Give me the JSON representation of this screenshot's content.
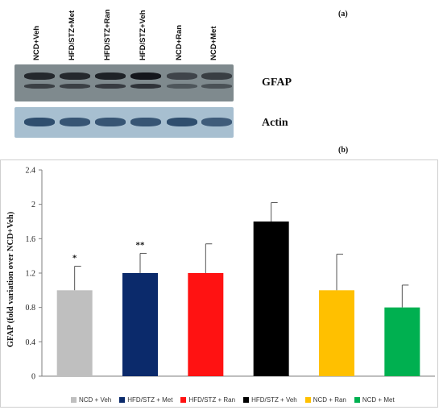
{
  "figure": {
    "panel_a_label": "(a)",
    "panel_b_label": "(b)"
  },
  "blot": {
    "lanes": [
      "NCD+Veh",
      "HFD/STZ+Met",
      "HFD/STZ+Ran",
      "HFD/STZ+Veh",
      "NCD+Ran",
      "NCD+Met"
    ],
    "rows": [
      {
        "label": "GFAP",
        "intensity": [
          0.85,
          0.85,
          0.9,
          1.0,
          0.6,
          0.65
        ]
      },
      {
        "label": "Actin",
        "intensity": [
          0.8,
          0.75,
          0.75,
          0.75,
          0.8,
          0.7
        ]
      }
    ]
  },
  "chart_data": {
    "type": "bar",
    "categories": [
      "NCD + Veh",
      "HFD/STZ + Met",
      "HFD/STZ + Ran",
      "HFD/STZ + Veh",
      "NCD + Ran",
      "NCD + Met"
    ],
    "values": [
      1.0,
      1.2,
      1.2,
      1.8,
      1.0,
      0.8
    ],
    "errors": [
      0.28,
      0.23,
      0.34,
      0.22,
      0.42,
      0.26
    ],
    "annotations": [
      "*",
      "**",
      "",
      "",
      "",
      ""
    ],
    "colors": [
      "#bfbfbf",
      "#0b2a6b",
      "#ff1212",
      "#000000",
      "#ffc000",
      "#00b050"
    ],
    "ylabel": "GFAP (fold variation over NCD+Veh)",
    "xlabel": "",
    "ylim": [
      0,
      2.4
    ],
    "yticks": [
      "0",
      "0.4",
      "0.8",
      "1.2",
      "1.6",
      "2",
      "2.4"
    ],
    "legend_position": "bottom",
    "grid": false
  }
}
